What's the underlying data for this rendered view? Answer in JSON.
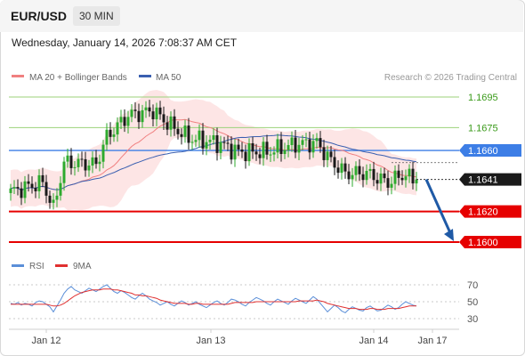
{
  "header": {
    "symbol": "EUR/USD",
    "timeframe": "30 MIN",
    "datetime": "Wednesday, January 14, 2026 7:08:37 AM CET"
  },
  "legend": {
    "ma20_bb": "MA 20 + Bollinger Bands",
    "ma50": "MA 50",
    "credit": "Research © 2026 Trading Central",
    "rsi": "RSI",
    "ma9": "9MA"
  },
  "colors": {
    "bullish": "#2eaa2e",
    "bearish": "#1a1a1a",
    "ma20": "#f08080",
    "bollinger_fill": "#fde0e0",
    "ma50": "#3a5fb0",
    "resistance": "#9bd27a",
    "pivot": "#3d7ee6",
    "support": "#e60000",
    "forecast_arrow": "#1f5aa6",
    "current_price_tag": "#1a1a1a",
    "rsi_line": "#5b8fd8",
    "rsi_ma": "#e03030"
  },
  "chart_data": {
    "type": "candlestick",
    "instrument": "EUR/USD",
    "interval": "30 MIN",
    "ylim": [
      1.1594,
      1.1702
    ],
    "x_ticks": [
      "Jan 12",
      "Jan 13",
      "Jan 14",
      "Jan 17"
    ],
    "levels": [
      {
        "id": "r2",
        "value": 1.1695,
        "label": "1.1695",
        "kind": "resistance"
      },
      {
        "id": "r1",
        "value": 1.1675,
        "label": "1.1675",
        "kind": "resistance"
      },
      {
        "id": "pivot",
        "value": 1.166,
        "label": "1.1660",
        "kind": "pivot"
      },
      {
        "id": "s1",
        "value": 1.162,
        "label": "1.1620",
        "kind": "support"
      },
      {
        "id": "s2",
        "value": 1.16,
        "label": "1.1600",
        "kind": "support"
      }
    ],
    "last_price": {
      "value": 1.1641,
      "label": "1.1641"
    },
    "forecast_target": 1.16,
    "close_path": [
      {
        "bar": 0,
        "close": 1.1633
      },
      {
        "bar": 9,
        "close": 1.1639
      },
      {
        "bar": 12,
        "close": 1.1622
      },
      {
        "bar": 15,
        "close": 1.1652
      },
      {
        "bar": 24,
        "close": 1.1651
      },
      {
        "bar": 27,
        "close": 1.1669
      },
      {
        "bar": 33,
        "close": 1.1683
      },
      {
        "bar": 40,
        "close": 1.1686
      },
      {
        "bar": 44,
        "close": 1.1678
      },
      {
        "bar": 50,
        "close": 1.1668
      },
      {
        "bar": 58,
        "close": 1.1665
      },
      {
        "bar": 64,
        "close": 1.1659
      },
      {
        "bar": 72,
        "close": 1.1659
      },
      {
        "bar": 80,
        "close": 1.1664
      },
      {
        "bar": 86,
        "close": 1.1665
      },
      {
        "bar": 90,
        "close": 1.1653
      },
      {
        "bar": 94,
        "close": 1.1645
      },
      {
        "bar": 100,
        "close": 1.1645
      },
      {
        "bar": 106,
        "close": 1.1639
      },
      {
        "bar": 110,
        "close": 1.1644
      },
      {
        "bar": 114,
        "close": 1.1641
      }
    ],
    "rsi": {
      "ticks": [
        70,
        50,
        30
      ],
      "ylim": [
        20,
        80
      ],
      "values": [
        48,
        47,
        49,
        46,
        48,
        47,
        45,
        49,
        51,
        50,
        47,
        44,
        38,
        45,
        52,
        60,
        65,
        68,
        64,
        62,
        60,
        63,
        66,
        64,
        62,
        65,
        68,
        70,
        66,
        62,
        60,
        63,
        61,
        58,
        55,
        53,
        57,
        60,
        57,
        53,
        51,
        49,
        46,
        48,
        50,
        47,
        45,
        48,
        51,
        49,
        46,
        48,
        50,
        47,
        45,
        43,
        46,
        49,
        51,
        48,
        46,
        49,
        53,
        52,
        50,
        47,
        45,
        49,
        52,
        55,
        53,
        51,
        48,
        46,
        50,
        53,
        51,
        49,
        47,
        51,
        54,
        52,
        50,
        48,
        52,
        56,
        53,
        48,
        43,
        38,
        42,
        46,
        43,
        39,
        37,
        41,
        44,
        42,
        40,
        39,
        43,
        45,
        42,
        39,
        40,
        43,
        46,
        44,
        41,
        43,
        47,
        50,
        48,
        46,
        45
      ],
      "ma_values": [
        47,
        47,
        47,
        47,
        47,
        47,
        47,
        47,
        47,
        47,
        47,
        46,
        45,
        45,
        46,
        48,
        51,
        54,
        57,
        59,
        61,
        62,
        63,
        64,
        64,
        64,
        65,
        65,
        65,
        64,
        64,
        63,
        62,
        61,
        60,
        58,
        58,
        57,
        57,
        56,
        55,
        54,
        52,
        51,
        50,
        49,
        48,
        48,
        48,
        48,
        47,
        47,
        48,
        48,
        47,
        47,
        47,
        47,
        47,
        47,
        47,
        47,
        48,
        49,
        49,
        49,
        49,
        49,
        49,
        50,
        50,
        50,
        50,
        50,
        50,
        50,
        50,
        50,
        50,
        50,
        50,
        51,
        51,
        51,
        51,
        51,
        52,
        51,
        50,
        48,
        47,
        46,
        45,
        44,
        43,
        42,
        42,
        42,
        41,
        41,
        41,
        42,
        42,
        41,
        41,
        41,
        42,
        42,
        42,
        42,
        43,
        44,
        45,
        45,
        45
      ]
    }
  }
}
